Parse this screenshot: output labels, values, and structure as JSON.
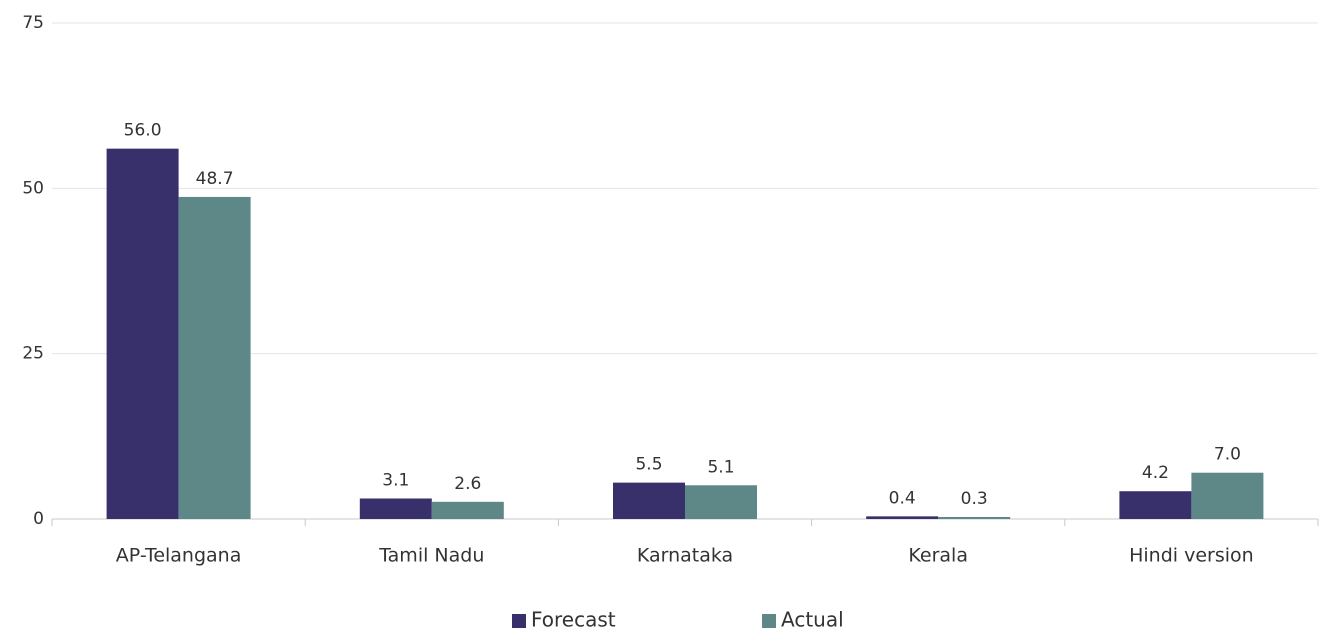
{
  "chart_data": {
    "type": "bar",
    "categories": [
      "AP-Telangana",
      "Tamil Nadu",
      "Karnataka",
      "Kerala",
      "Hindi version"
    ],
    "series": [
      {
        "name": "Forecast",
        "color": "#37306b",
        "values": [
          56.0,
          3.1,
          5.5,
          0.4,
          4.2
        ],
        "value_labels": [
          "56.0",
          "3.1",
          "5.5",
          "0.4",
          "4.2"
        ]
      },
      {
        "name": "Actual",
        "color": "#5e8788",
        "values": [
          48.7,
          2.6,
          5.1,
          0.3,
          7.0
        ],
        "value_labels": [
          "48.7",
          "2.6",
          "5.1",
          "0.3",
          "7.0"
        ]
      }
    ],
    "ylim": [
      0,
      75
    ],
    "yticks": [
      0,
      25,
      50,
      75
    ],
    "grid": true,
    "legend": "bottom"
  }
}
